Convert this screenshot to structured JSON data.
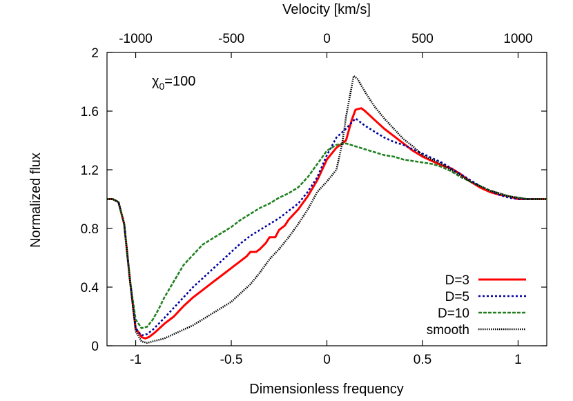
{
  "chart_data": {
    "type": "line",
    "xlabel": "Dimensionless frequency",
    "x2label": "Velocity [km/s]",
    "ylabel": "Normalized flux",
    "annotation": {
      "symbol": "χ",
      "subscript": "0",
      "text": "=100"
    },
    "xlim": [
      -1.15,
      1.15
    ],
    "ylim": [
      0,
      2
    ],
    "x2lim": [
      -1150,
      1150
    ],
    "xticks": [
      -1,
      -0.5,
      0,
      0.5,
      1
    ],
    "xtick_labels": [
      "-1",
      "-0.5",
      "0",
      "0.5",
      "1"
    ],
    "yticks": [
      0,
      0.4,
      0.8,
      1.2,
      1.6,
      2
    ],
    "ytick_labels": [
      "0",
      "0.4",
      "0.8",
      "1.2",
      "1.6",
      "2"
    ],
    "x2ticks": [
      -1000,
      -500,
      0,
      500,
      1000
    ],
    "x2tick_labels": [
      "-1000",
      "-500",
      "0",
      "500",
      "1000"
    ],
    "legend_position": "bottom-right",
    "series": [
      {
        "name": "D=3",
        "color": "#ff0000",
        "dash": "solid",
        "x": [
          -1.15,
          -1.12,
          -1.09,
          -1.06,
          -1.03,
          -1.0,
          -0.97,
          -0.95,
          -0.93,
          -0.9,
          -0.85,
          -0.8,
          -0.75,
          -0.7,
          -0.65,
          -0.6,
          -0.55,
          -0.5,
          -0.45,
          -0.42,
          -0.4,
          -0.37,
          -0.35,
          -0.32,
          -0.3,
          -0.27,
          -0.25,
          -0.22,
          -0.2,
          -0.15,
          -0.1,
          -0.05,
          0.0,
          0.05,
          0.1,
          0.13,
          0.15,
          0.18,
          0.2,
          0.25,
          0.3,
          0.35,
          0.4,
          0.45,
          0.5,
          0.55,
          0.6,
          0.65,
          0.7,
          0.75,
          0.8,
          0.85,
          0.9,
          0.95,
          1.0,
          1.05,
          1.1,
          1.15
        ],
        "y": [
          1.0,
          1.0,
          0.98,
          0.83,
          0.45,
          0.12,
          0.06,
          0.05,
          0.06,
          0.09,
          0.15,
          0.2,
          0.27,
          0.33,
          0.38,
          0.43,
          0.48,
          0.53,
          0.58,
          0.61,
          0.64,
          0.64,
          0.66,
          0.7,
          0.74,
          0.74,
          0.79,
          0.82,
          0.86,
          0.93,
          1.02,
          1.13,
          1.27,
          1.35,
          1.4,
          1.54,
          1.61,
          1.62,
          1.6,
          1.54,
          1.48,
          1.43,
          1.38,
          1.33,
          1.29,
          1.26,
          1.23,
          1.21,
          1.17,
          1.12,
          1.08,
          1.05,
          1.03,
          1.02,
          1.0,
          1.0,
          1.0,
          1.0
        ]
      },
      {
        "name": "D=5",
        "color": "#0000a0",
        "dash": "dotted",
        "x": [
          -1.15,
          -1.12,
          -1.09,
          -1.06,
          -1.03,
          -1.0,
          -0.97,
          -0.94,
          -0.91,
          -0.88,
          -0.85,
          -0.8,
          -0.75,
          -0.7,
          -0.65,
          -0.6,
          -0.55,
          -0.5,
          -0.45,
          -0.4,
          -0.35,
          -0.3,
          -0.25,
          -0.2,
          -0.15,
          -0.1,
          -0.05,
          0.0,
          0.05,
          0.1,
          0.15,
          0.2,
          0.25,
          0.3,
          0.35,
          0.4,
          0.45,
          0.5,
          0.55,
          0.6,
          0.65,
          0.7,
          0.75,
          0.8,
          0.85,
          0.9,
          0.95,
          1.0,
          1.05,
          1.1,
          1.15
        ],
        "y": [
          1.0,
          1.0,
          0.98,
          0.83,
          0.45,
          0.12,
          0.07,
          0.08,
          0.11,
          0.15,
          0.19,
          0.26,
          0.33,
          0.4,
          0.46,
          0.52,
          0.58,
          0.64,
          0.7,
          0.75,
          0.79,
          0.83,
          0.87,
          0.92,
          0.97,
          1.05,
          1.15,
          1.3,
          1.42,
          1.48,
          1.55,
          1.5,
          1.46,
          1.42,
          1.39,
          1.37,
          1.34,
          1.31,
          1.28,
          1.25,
          1.21,
          1.17,
          1.13,
          1.09,
          1.06,
          1.03,
          1.01,
          1.0,
          1.0,
          1.0,
          1.0
        ]
      },
      {
        "name": "D=10",
        "color": "#208020",
        "dash": "dashed",
        "x": [
          -1.15,
          -1.12,
          -1.09,
          -1.06,
          -1.03,
          -1.0,
          -0.97,
          -0.94,
          -0.91,
          -0.88,
          -0.85,
          -0.8,
          -0.75,
          -0.7,
          -0.65,
          -0.6,
          -0.55,
          -0.5,
          -0.45,
          -0.4,
          -0.35,
          -0.3,
          -0.25,
          -0.2,
          -0.15,
          -0.1,
          -0.05,
          0.0,
          0.05,
          0.1,
          0.15,
          0.2,
          0.25,
          0.3,
          0.35,
          0.4,
          0.45,
          0.5,
          0.55,
          0.6,
          0.65,
          0.7,
          0.75,
          0.8,
          0.85,
          0.9,
          0.95,
          1.0,
          1.05,
          1.1,
          1.15
        ],
        "y": [
          1.0,
          1.0,
          0.98,
          0.83,
          0.45,
          0.18,
          0.12,
          0.13,
          0.18,
          0.25,
          0.33,
          0.44,
          0.55,
          0.62,
          0.69,
          0.73,
          0.77,
          0.81,
          0.86,
          0.9,
          0.94,
          0.97,
          1.01,
          1.04,
          1.08,
          1.15,
          1.24,
          1.33,
          1.37,
          1.38,
          1.36,
          1.34,
          1.32,
          1.3,
          1.29,
          1.27,
          1.26,
          1.25,
          1.24,
          1.22,
          1.19,
          1.15,
          1.12,
          1.09,
          1.06,
          1.04,
          1.02,
          1.01,
          1.0,
          1.0,
          1.0
        ]
      },
      {
        "name": "smooth",
        "color": "#000000",
        "dash": "fine",
        "x": [
          -1.15,
          -1.12,
          -1.09,
          -1.06,
          -1.03,
          -1.0,
          -0.97,
          -0.94,
          -0.91,
          -0.88,
          -0.85,
          -0.8,
          -0.75,
          -0.7,
          -0.65,
          -0.6,
          -0.55,
          -0.5,
          -0.45,
          -0.4,
          -0.35,
          -0.3,
          -0.25,
          -0.2,
          -0.15,
          -0.1,
          -0.05,
          0.0,
          0.05,
          0.08,
          0.1,
          0.12,
          0.14,
          0.16,
          0.2,
          0.25,
          0.3,
          0.35,
          0.4,
          0.45,
          0.5,
          0.55,
          0.6,
          0.65,
          0.7,
          0.75,
          0.8,
          0.85,
          0.9,
          0.95,
          1.0,
          1.05,
          1.1,
          1.15
        ],
        "y": [
          1.0,
          1.0,
          0.98,
          0.83,
          0.45,
          0.1,
          0.03,
          0.02,
          0.03,
          0.04,
          0.05,
          0.08,
          0.11,
          0.14,
          0.18,
          0.22,
          0.26,
          0.3,
          0.36,
          0.42,
          0.5,
          0.59,
          0.66,
          0.74,
          0.83,
          0.93,
          1.05,
          1.12,
          1.2,
          1.38,
          1.56,
          1.7,
          1.84,
          1.82,
          1.73,
          1.63,
          1.55,
          1.48,
          1.41,
          1.36,
          1.3,
          1.27,
          1.24,
          1.2,
          1.16,
          1.12,
          1.09,
          1.06,
          1.04,
          1.02,
          1.01,
          1.0,
          1.0,
          1.0
        ]
      }
    ]
  }
}
